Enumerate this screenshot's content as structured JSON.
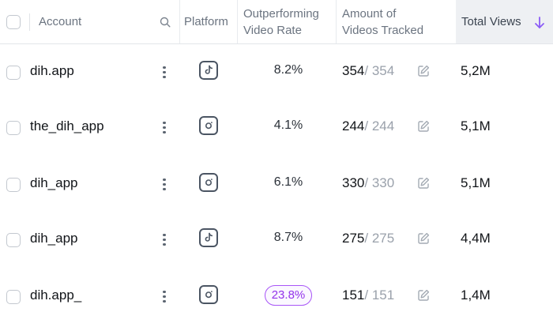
{
  "header": {
    "account": "Account",
    "platform": "Platform",
    "outperforming": [
      "Outperforming",
      "Video Rate"
    ],
    "amount": [
      "Amount of",
      "Videos Tracked"
    ],
    "total_views": "Total Views"
  },
  "colors": {
    "highlight_pill": "#9333ea",
    "sort_arrow": "#8b5cf6"
  },
  "rows": [
    {
      "account": "dih.app",
      "platform": "tiktok-icon",
      "rate": "8.2%",
      "highlight": false,
      "tracked": "354",
      "of": "/ 354",
      "views": "5,2M"
    },
    {
      "account": "the_dih_app",
      "platform": "instagram-icon",
      "rate": "4.1%",
      "highlight": false,
      "tracked": "244",
      "of": "/ 244",
      "views": "5,1M"
    },
    {
      "account": "dih_app",
      "platform": "instagram-icon",
      "rate": "6.1%",
      "highlight": false,
      "tracked": "330",
      "of": "/ 330",
      "views": "5,1M"
    },
    {
      "account": "dih_app",
      "platform": "tiktok-icon",
      "rate": "8.7%",
      "highlight": false,
      "tracked": "275",
      "of": "/ 275",
      "views": "4,4M"
    },
    {
      "account": "dih.app_",
      "platform": "instagram-icon",
      "rate": "23.8%",
      "highlight": true,
      "tracked": "151",
      "of": "/ 151",
      "views": "1,4M"
    }
  ]
}
